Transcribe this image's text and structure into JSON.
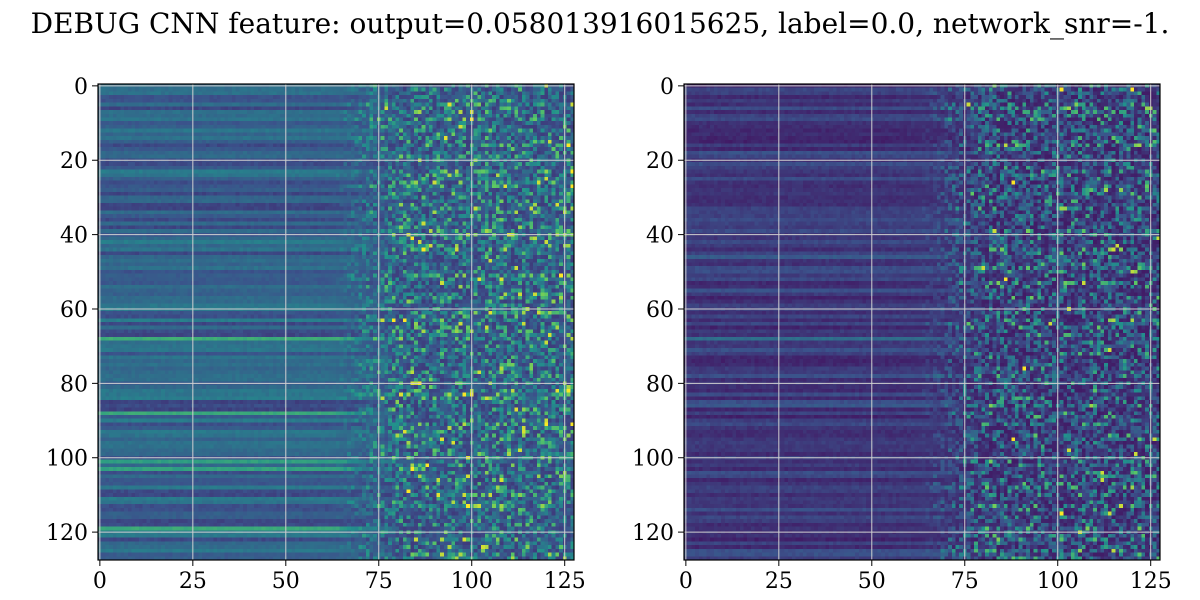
{
  "title": "DEBUG CNN feature: output=0.058013916015625, label=0.0, network_snr=-1.",
  "colormap": [
    "#440154",
    "#3b528b",
    "#21918c",
    "#5ec962",
    "#fde725"
  ],
  "grid_color": "#d0d0d0",
  "chart_data": [
    {
      "type": "heatmap",
      "rows": 128,
      "cols": 128,
      "xlim": [
        0,
        127
      ],
      "ylim": [
        127,
        0
      ],
      "xticks": [
        0,
        25,
        50,
        75,
        100,
        125
      ],
      "yticks": [
        0,
        20,
        40,
        60,
        80,
        100,
        120
      ],
      "grid": true,
      "bright_rows": [
        63,
        68,
        88,
        101,
        103,
        119
      ],
      "hot_spots": [
        [
          63,
          79
        ],
        [
          63,
          82
        ],
        [
          103,
          84
        ],
        [
          41,
          84
        ],
        [
          109,
          83
        ]
      ]
    },
    {
      "type": "heatmap",
      "rows": 128,
      "cols": 128,
      "xlim": [
        0,
        127
      ],
      "ylim": [
        127,
        0
      ],
      "xticks": [
        0,
        25,
        50,
        75,
        100,
        125
      ],
      "yticks": [
        0,
        20,
        40,
        60,
        80,
        100,
        120
      ],
      "grid": true,
      "bright_rows": [
        6,
        18,
        46,
        55,
        68,
        86,
        104
      ],
      "hot_spots": [
        [
          1,
          101
        ],
        [
          1,
          120
        ],
        [
          26,
          88
        ],
        [
          52,
          86
        ],
        [
          76,
          91
        ],
        [
          95,
          88
        ],
        [
          115,
          101
        ]
      ]
    }
  ]
}
